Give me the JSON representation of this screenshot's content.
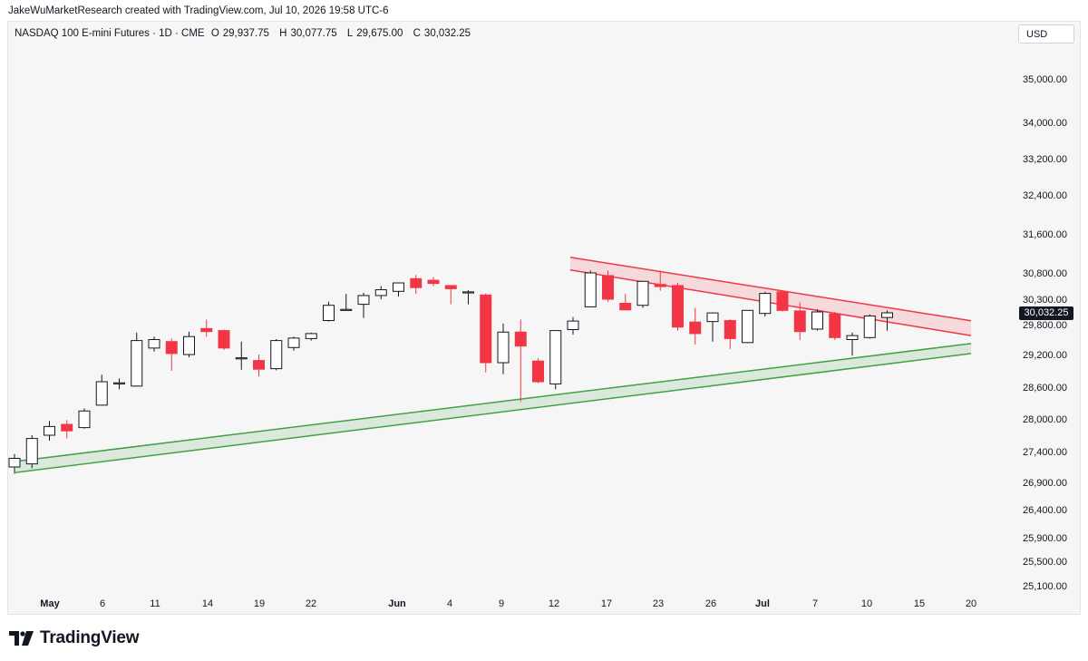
{
  "credit": "JakeWuMarketResearch created with TradingView.com, Jul 10, 2026 19:58 UTC-6",
  "header": {
    "symbol": "NASDAQ 100 E-mini Futures · 1D · CME",
    "open_label": "O",
    "open": "29,937.75",
    "high_label": "H",
    "high": "30,077.75",
    "low_label": "L",
    "low": "29,675.00",
    "close_label": "C",
    "close": "30,032.25"
  },
  "currency": "USD",
  "last_price": "30,032.25",
  "logo_text": "TradingView",
  "colors": {
    "up": "#ffffff",
    "down": "#f23645",
    "wick": "#131722",
    "resistance": "#f23645",
    "support": "#43a047"
  },
  "chart_data": {
    "type": "candlestick",
    "y_ticks": [
      "35,000.00",
      "34,000.00",
      "33,200.00",
      "32,400.00",
      "31,600.00",
      "30,800.00",
      "30,300.00",
      "29,800.00",
      "29,200.00",
      "28,600.00",
      "28,000.00",
      "27,400.00",
      "26,900.00",
      "26,400.00",
      "25,900.00",
      "25,500.00",
      "25,100.00"
    ],
    "x_ticks": [
      "May",
      "6",
      "11",
      "14",
      "19",
      "22",
      "Jun",
      "4",
      "9",
      "12",
      "17",
      "23",
      "26",
      "Jul",
      "7",
      "10",
      "15",
      "20"
    ],
    "bold_x_ticks": [
      "May",
      "Jun",
      "Jul"
    ],
    "candles": [
      {
        "o": 27150,
        "h": 27360,
        "l": 27040,
        "c": 27290
      },
      {
        "o": 27200,
        "h": 27700,
        "l": 27130,
        "c": 27640
      },
      {
        "o": 27700,
        "h": 27960,
        "l": 27600,
        "c": 27860
      },
      {
        "o": 27900,
        "h": 27980,
        "l": 27640,
        "c": 27780
      },
      {
        "o": 27840,
        "h": 28200,
        "l": 27820,
        "c": 28150
      },
      {
        "o": 28260,
        "h": 28830,
        "l": 28250,
        "c": 28700
      },
      {
        "o": 28680,
        "h": 28760,
        "l": 28560,
        "c": 28680
      },
      {
        "o": 28620,
        "h": 29640,
        "l": 28610,
        "c": 29480
      },
      {
        "o": 29330,
        "h": 29560,
        "l": 29260,
        "c": 29500
      },
      {
        "o": 29460,
        "h": 29520,
        "l": 28900,
        "c": 29220
      },
      {
        "o": 29200,
        "h": 29660,
        "l": 29150,
        "c": 29560
      },
      {
        "o": 29720,
        "h": 29900,
        "l": 29560,
        "c": 29660
      },
      {
        "o": 29680,
        "h": 29700,
        "l": 29290,
        "c": 29330
      },
      {
        "o": 29140,
        "h": 29460,
        "l": 28920,
        "c": 29140
      },
      {
        "o": 29090,
        "h": 29200,
        "l": 28800,
        "c": 28930
      },
      {
        "o": 28940,
        "h": 29510,
        "l": 28910,
        "c": 29480
      },
      {
        "o": 29340,
        "h": 29560,
        "l": 29280,
        "c": 29530
      },
      {
        "o": 29520,
        "h": 29640,
        "l": 29480,
        "c": 29620
      },
      {
        "o": 29880,
        "h": 30250,
        "l": 29860,
        "c": 30180
      },
      {
        "o": 30100,
        "h": 30400,
        "l": 30080,
        "c": 30100
      },
      {
        "o": 30200,
        "h": 30420,
        "l": 29930,
        "c": 30370
      },
      {
        "o": 30370,
        "h": 30550,
        "l": 30300,
        "c": 30480
      },
      {
        "o": 30450,
        "h": 30620,
        "l": 30350,
        "c": 30610
      },
      {
        "o": 30690,
        "h": 30760,
        "l": 30400,
        "c": 30520
      },
      {
        "o": 30660,
        "h": 30720,
        "l": 30550,
        "c": 30600
      },
      {
        "o": 30560,
        "h": 30560,
        "l": 30200,
        "c": 30500
      },
      {
        "o": 30430,
        "h": 30470,
        "l": 30200,
        "c": 30440
      },
      {
        "o": 30380,
        "h": 30410,
        "l": 28870,
        "c": 29050
      },
      {
        "o": 29050,
        "h": 29820,
        "l": 28840,
        "c": 29650
      },
      {
        "o": 29650,
        "h": 29900,
        "l": 28320,
        "c": 29370
      },
      {
        "o": 29080,
        "h": 29130,
        "l": 28670,
        "c": 28700
      },
      {
        "o": 28660,
        "h": 29680,
        "l": 28560,
        "c": 29680
      },
      {
        "o": 29700,
        "h": 29950,
        "l": 29600,
        "c": 29870
      },
      {
        "o": 30150,
        "h": 30850,
        "l": 30140,
        "c": 30800
      },
      {
        "o": 30750,
        "h": 30850,
        "l": 30250,
        "c": 30300
      },
      {
        "o": 30220,
        "h": 30400,
        "l": 30080,
        "c": 30090
      },
      {
        "o": 30180,
        "h": 30650,
        "l": 30130,
        "c": 30640
      },
      {
        "o": 30580,
        "h": 30850,
        "l": 30460,
        "c": 30540
      },
      {
        "o": 30560,
        "h": 30610,
        "l": 29680,
        "c": 29750
      },
      {
        "o": 29850,
        "h": 30130,
        "l": 29400,
        "c": 29620
      },
      {
        "o": 29860,
        "h": 30040,
        "l": 29460,
        "c": 30030
      },
      {
        "o": 29880,
        "h": 29900,
        "l": 29310,
        "c": 29520
      },
      {
        "o": 29440,
        "h": 30080,
        "l": 29430,
        "c": 30080
      },
      {
        "o": 30020,
        "h": 30440,
        "l": 29960,
        "c": 30410
      },
      {
        "o": 30440,
        "h": 30470,
        "l": 30060,
        "c": 30080
      },
      {
        "o": 30070,
        "h": 30240,
        "l": 29490,
        "c": 29660
      },
      {
        "o": 29710,
        "h": 30100,
        "l": 29680,
        "c": 30050
      },
      {
        "o": 30010,
        "h": 30050,
        "l": 29490,
        "c": 29540
      },
      {
        "o": 29500,
        "h": 29640,
        "l": 29180,
        "c": 29580
      },
      {
        "o": 29540,
        "h": 30000,
        "l": 29520,
        "c": 29970
      },
      {
        "o": 29940,
        "h": 30080,
        "l": 29680,
        "c": 30032.25
      }
    ],
    "trendlines": {
      "resistance": {
        "upper_start": 31120,
        "upper_end": 29875,
        "lower_start": 30860,
        "lower_end": 29580
      },
      "support": {
        "upper_start": 27240,
        "upper_end": 29420,
        "lower_start": 27060,
        "lower_end": 29220
      }
    }
  }
}
